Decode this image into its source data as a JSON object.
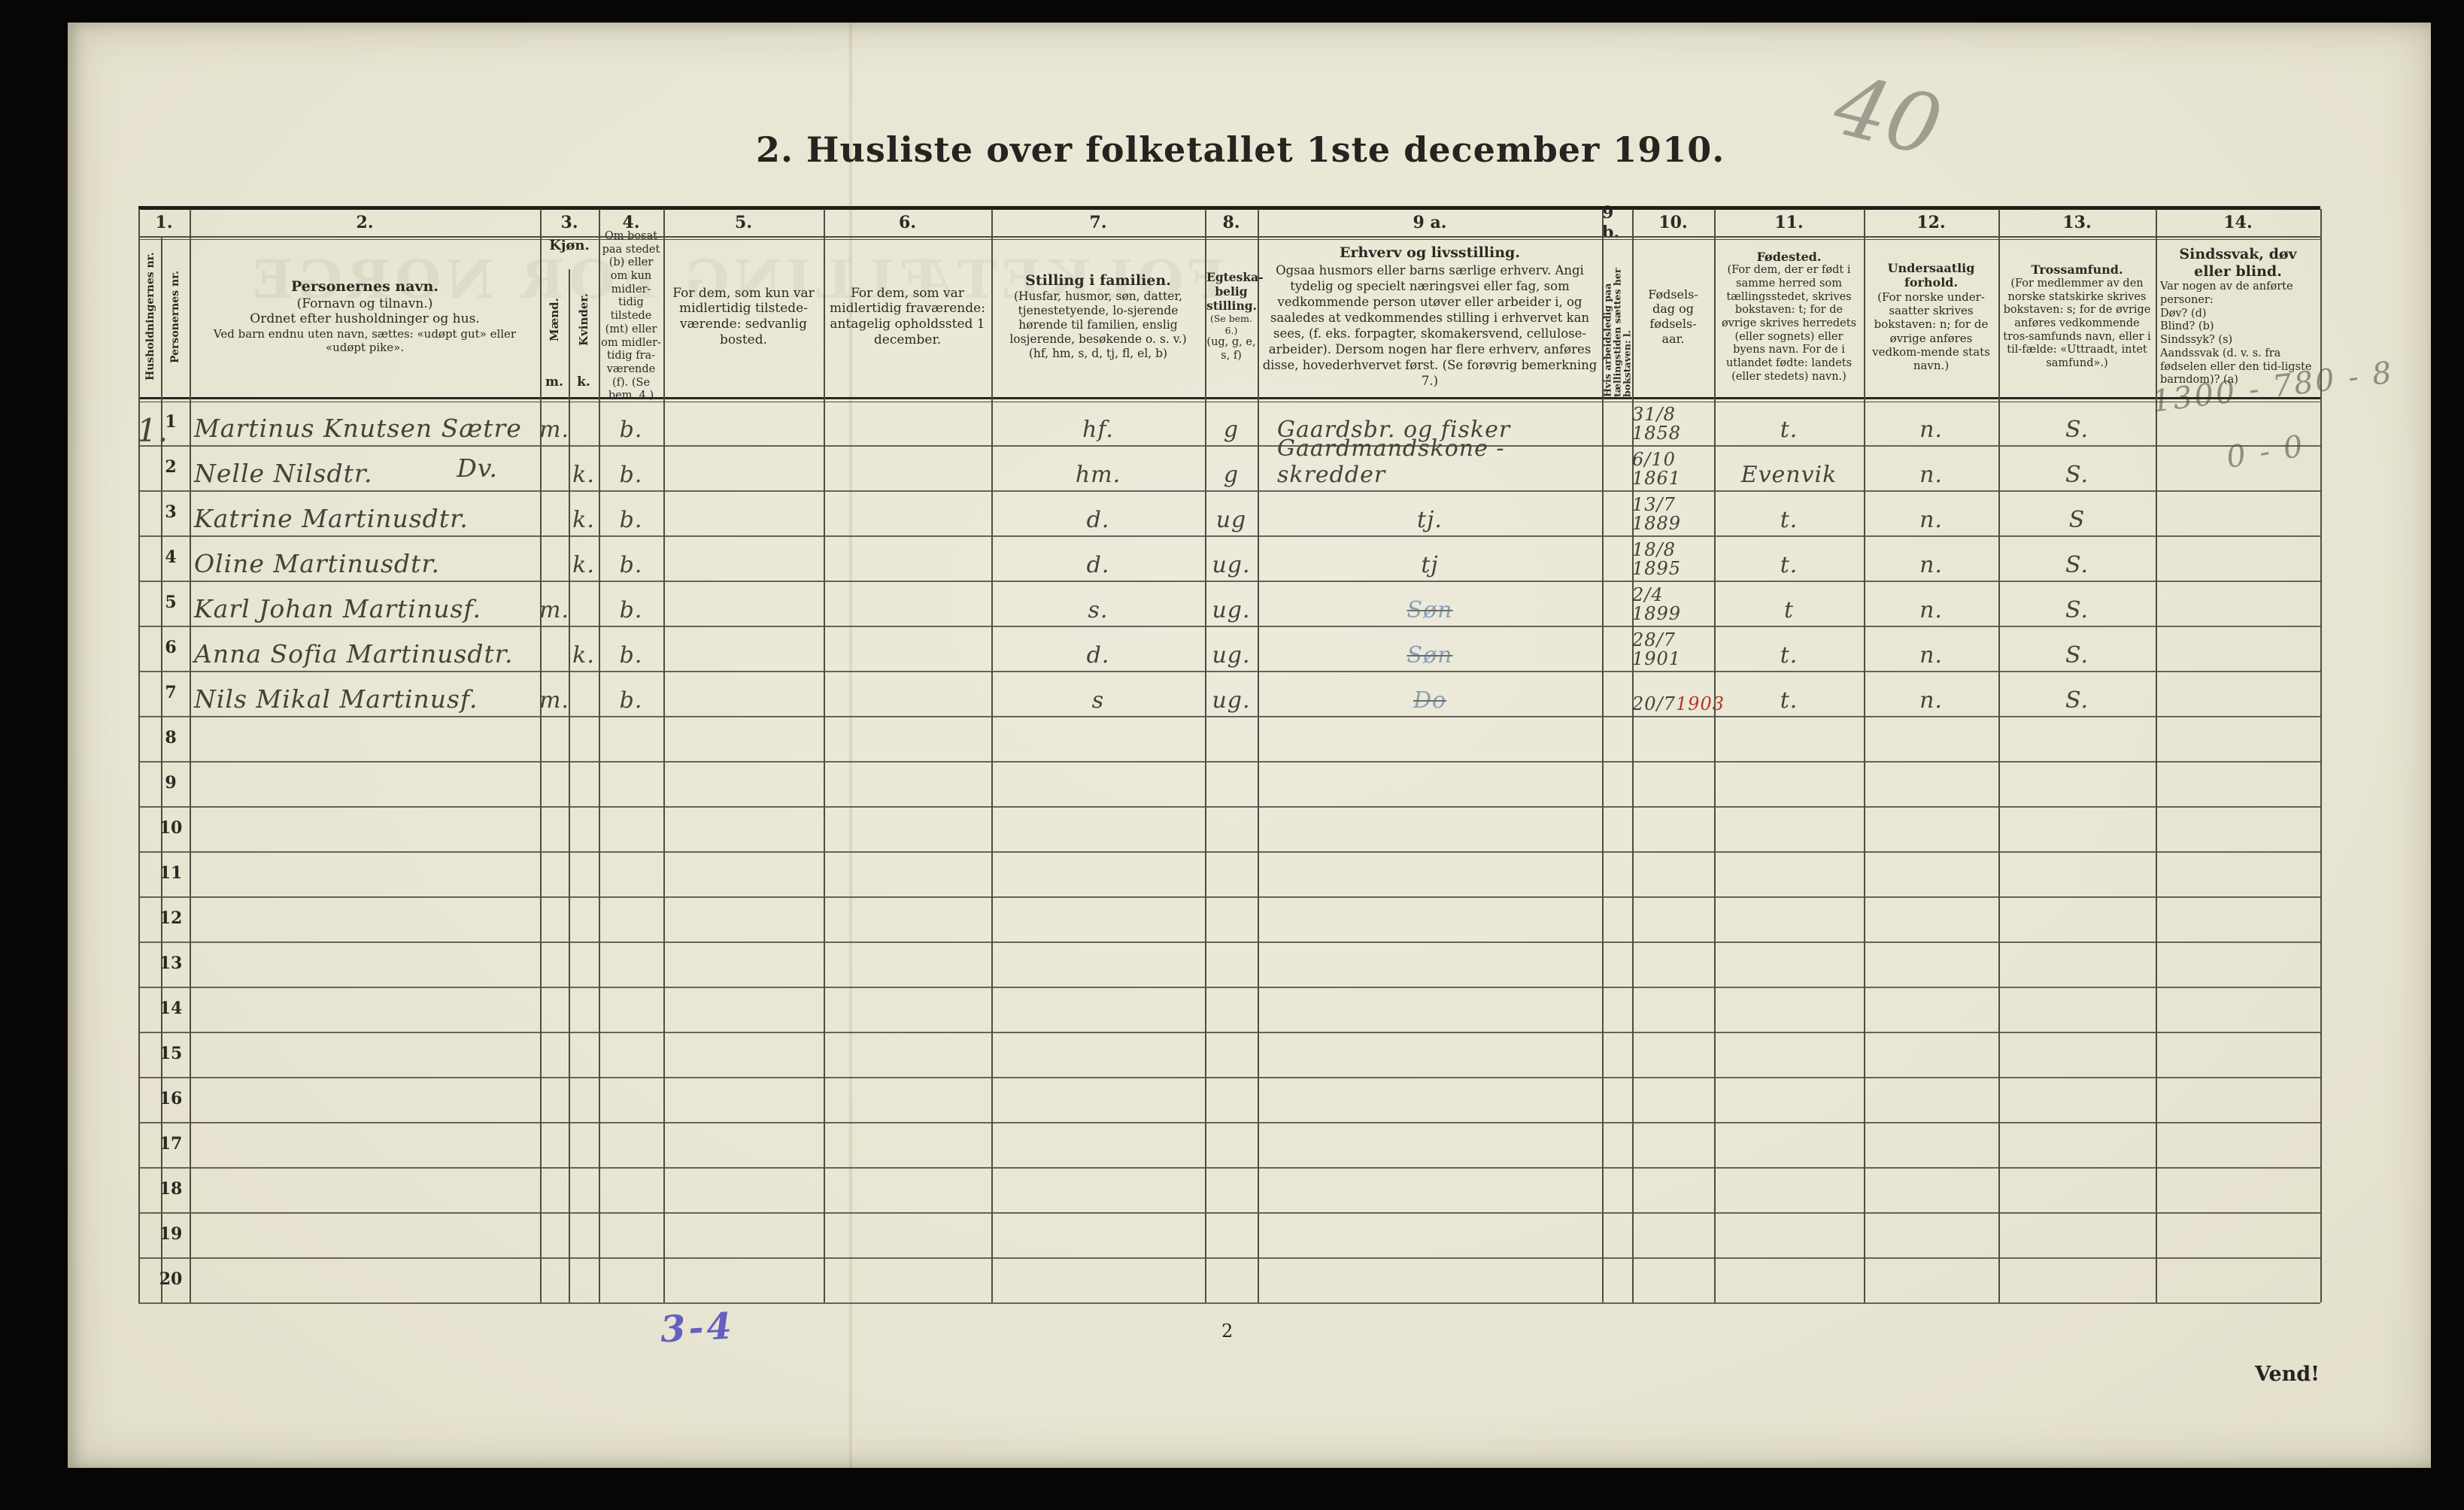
{
  "page": {
    "title": "2. Husliste over folketallet 1ste december 1910.",
    "page_number": "2",
    "turn_note": "Vend!"
  },
  "annotations": {
    "corner_number": "40",
    "margin_calc_1": "1300 - 780 - 8",
    "margin_calc_2": "0 - 0",
    "household_mark": "1.",
    "bottom_note": "3-4"
  },
  "header": {
    "numbers": [
      "1.",
      "2.",
      "3.",
      "4.",
      "5.",
      "6.",
      "7.",
      "8.",
      "9 a.",
      "9 b.",
      "10.",
      "11.",
      "12.",
      "13.",
      "14."
    ],
    "c1a": "Husholdningernes nr.",
    "c1b": "Personernes nr.",
    "c2_title": "Personernes navn.",
    "c2_sub": "(Fornavn og tilnavn.)",
    "c2_line3": "Ordnet efter husholdninger og hus.",
    "c2_line4": "Ved barn endnu uten navn, sættes: «udøpt gut» eller «udøpt pike».",
    "c3_title": "Kjøn.",
    "c3_m": "Mænd.",
    "c3_k": "Kvinder.",
    "c3_m_abbr": "m.",
    "c3_k_abbr": "k.",
    "c4": "Om bosat paa stedet (b) eller om kun midler-tidig tilstede (mt) eller om midler-tidig fra-værende (f). (Se bem. 4.)",
    "c5": "For dem, som kun var midlertidig tilstede-værende: sedvanlig bosted.",
    "c6": "For dem, som var midlertidig fraværende: antagelig opholdssted 1 december.",
    "c7_title": "Stilling i familien.",
    "c7_body": "(Husfar, husmor, søn, datter, tjenestetyende, lo-sjerende hørende til familien, enslig losjerende, besøkende o. s. v.)",
    "c7_codes": "(hf, hm, s, d, tj, fl, el, b)",
    "c8_title": "Egteska-belig stilling.",
    "c8_note": "(Se bem. 6.)",
    "c8_codes": "(ug, g, e, s, f)",
    "c9a_title": "Erhverv og livsstilling.",
    "c9a_body": "Ogsaa husmors eller barns særlige erhverv. Angi tydelig og specielt næringsvei eller fag, som vedkommende person utøver eller arbeider i, og saaledes at vedkommendes stilling i erhvervet kan sees, (f. eks. forpagter, skomakersvend, cellulose-arbeider). Dersom nogen har flere erhverv, anføres disse, hovederhvervet først. (Se forøvrig bemerkning 7.)",
    "c9b": "Hvis arbeidsledig paa tællingstiden sættes her bokstaven: l.",
    "c10": "Fødsels- dag og fødsels- aar.",
    "c11_title": "Fødested.",
    "c11_body": "(For dem, der er født i samme herred som tællingsstedet, skrives bokstaven: t; for de øvrige skrives herredets (eller sognets) eller byens navn. For de i utlandet fødte: landets (eller stedets) navn.)",
    "c12_title": "Undersaatlig forhold.",
    "c12_body": "(For norske under-saatter skrives bokstaven: n; for de øvrige anføres vedkom-mende stats navn.)",
    "c13_title": "Trossamfund.",
    "c13_body": "(For medlemmer av den norske statskirke skrives bokstaven: s; for de øvrige anføres vedkommende tros-samfunds navn, eller i til-fælde: «Uttraadt, intet samfund».)",
    "c14_title": "Sindssvak, døv eller blind.",
    "c14_body": "Var nogen av de anførte personer:",
    "c14_d": "Døv?  (d)",
    "c14_b": "Blind?  (b)",
    "c14_s": "Sindssyk?  (s)",
    "c14_a": "Aandssvak (d. v. s. fra fødselen eller den tid-ligste barndom)?  (a)"
  },
  "rows": [
    {
      "nr": "1",
      "name": "Martinus Knutsen Sætre",
      "m": "m.",
      "k": "",
      "bosat": "b.",
      "stilling": "hf.",
      "egteskap": "g",
      "erhverv": "Gaardsbr. og fisker",
      "fodt": "31/8 1858",
      "fodested": "t.",
      "undersaat": "n.",
      "tro": "S."
    },
    {
      "nr": "2",
      "name": "Nelle Nilsdtr.",
      "name_suffix": "Dv.",
      "m": "",
      "k": "k.",
      "bosat": "b.",
      "stilling": "hm.",
      "egteskap": "g",
      "erhverv": "Gaardmandskone - skredder",
      "fodt": "6/10 1861",
      "fodested": "Evenvik",
      "undersaat": "n.",
      "tro": "S."
    },
    {
      "nr": "3",
      "name": "Katrine Martinusdtr.",
      "m": "",
      "k": "k.",
      "bosat": "b.",
      "stilling": "d.",
      "egteskap": "ug",
      "erhverv": "tj.",
      "fodt": "13/7 1889",
      "fodested": "t.",
      "undersaat": "n.",
      "tro": "S"
    },
    {
      "nr": "4",
      "name": "Oline Martinusdtr.",
      "m": "",
      "k": "k.",
      "bosat": "b.",
      "stilling": "d.",
      "egteskap": "ug.",
      "erhverv": "tj",
      "fodt": "18/8 1895",
      "fodested": "t.",
      "undersaat": "n.",
      "tro": "S."
    },
    {
      "nr": "5",
      "name": "Karl Johan Martinusf.",
      "m": "m.",
      "k": "",
      "bosat": "b.",
      "stilling": "s.",
      "egteskap": "ug.",
      "erhverv": "Søn",
      "erhverv_style": "blue-struck",
      "fodt": "2/4 1899",
      "fodested": "t",
      "undersaat": "n.",
      "tro": "S."
    },
    {
      "nr": "6",
      "name": "Anna Sofia Martinusdtr.",
      "m": "",
      "k": "k.",
      "bosat": "b.",
      "stilling": "d.",
      "egteskap": "ug.",
      "erhverv": "Søn",
      "erhverv_style": "blue-struck",
      "fodt": "28/7 1901",
      "fodested": "t.",
      "undersaat": "n.",
      "tro": "S."
    },
    {
      "nr": "7",
      "name": "Nils Mikal Martinusf.",
      "m": "m.",
      "k": "",
      "bosat": "b.",
      "stilling": "s",
      "egteskap": "ug.",
      "erhverv": "Do",
      "erhverv_style": "blue-struck",
      "fodt_parts": [
        {
          "t": "20/7 ",
          "c": "ink"
        },
        {
          "t": "1903",
          "c": "red"
        }
      ],
      "fodested": "t.",
      "undersaat": "n.",
      "tro": "S."
    },
    {
      "nr": "8"
    },
    {
      "nr": "9"
    },
    {
      "nr": "10"
    },
    {
      "nr": "11"
    },
    {
      "nr": "12"
    },
    {
      "nr": "13"
    },
    {
      "nr": "14"
    },
    {
      "nr": "15"
    },
    {
      "nr": "16"
    },
    {
      "nr": "17"
    },
    {
      "nr": "18"
    },
    {
      "nr": "19"
    },
    {
      "nr": "20"
    }
  ]
}
